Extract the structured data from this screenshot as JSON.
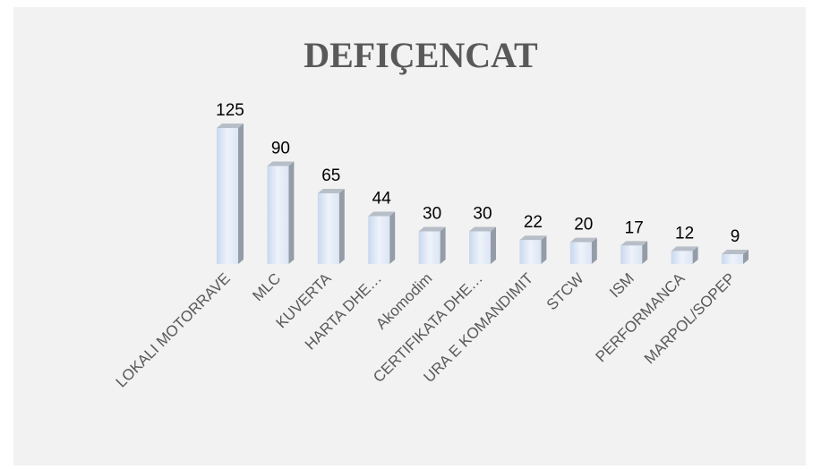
{
  "chart_data": {
    "type": "bar",
    "title": "DEFIÇENCAT",
    "categories": [
      "LOKALI MOTORRAVE",
      "MLC",
      "KUVERTA",
      "HARTA DHE…",
      "Akomodim",
      "CERTIFIKATA DHE…",
      "URA E KOMANDIMIT",
      "STCW",
      "ISM",
      "PERFORMANCA",
      "MARPOL/SOPEP"
    ],
    "values": [
      125,
      90,
      65,
      44,
      30,
      30,
      22,
      20,
      17,
      12,
      9
    ],
    "color": "#dce6f4"
  }
}
